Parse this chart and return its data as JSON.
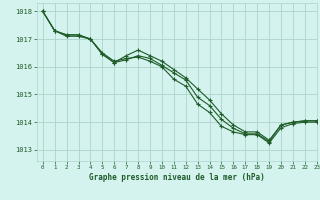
{
  "title": "Graphe pression niveau de la mer (hPa)",
  "background_color": "#d4f2ee",
  "grid_color": "#aed4cc",
  "line_color": "#1e5c28",
  "xlim": [
    -0.5,
    23
  ],
  "ylim": [
    1012.6,
    1018.3
  ],
  "yticks": [
    1013,
    1014,
    1015,
    1016,
    1017,
    1018
  ],
  "xticks": [
    0,
    1,
    2,
    3,
    4,
    5,
    6,
    7,
    8,
    9,
    10,
    11,
    12,
    13,
    14,
    15,
    16,
    17,
    18,
    19,
    20,
    21,
    22,
    23
  ],
  "series1_x": [
    0,
    1,
    2,
    3,
    4,
    5,
    6,
    7,
    8,
    9,
    10,
    11,
    12,
    13,
    14,
    15,
    16,
    17,
    18,
    19,
    20,
    21,
    22,
    23
  ],
  "series1_y": [
    1018.0,
    1017.3,
    1017.1,
    1017.1,
    1017.0,
    1016.5,
    1016.2,
    1016.3,
    1016.35,
    1016.2,
    1016.0,
    1015.55,
    1015.3,
    1014.65,
    1014.35,
    1013.85,
    1013.65,
    1013.55,
    1013.55,
    1013.25,
    1013.8,
    1013.95,
    1014.0,
    1014.0
  ],
  "series2_x": [
    0,
    1,
    2,
    3,
    4,
    5,
    6,
    7,
    8,
    9,
    10,
    11,
    12,
    13,
    14,
    15,
    16,
    17,
    18,
    19,
    20,
    21,
    22,
    23
  ],
  "series2_y": [
    1018.0,
    1017.3,
    1017.15,
    1017.15,
    1017.0,
    1016.45,
    1016.15,
    1016.4,
    1016.6,
    1016.4,
    1016.2,
    1015.9,
    1015.6,
    1015.2,
    1014.8,
    1014.3,
    1013.9,
    1013.65,
    1013.65,
    1013.35,
    1013.9,
    1014.0,
    1014.05,
    1014.05
  ],
  "series3_x": [
    0,
    1,
    2,
    3,
    4,
    5,
    6,
    7,
    8,
    9,
    10,
    11,
    12,
    13,
    14,
    15,
    16,
    17,
    18,
    19,
    20,
    21,
    22,
    23
  ],
  "series3_y": [
    1018.0,
    1017.3,
    1017.15,
    1017.15,
    1017.0,
    1016.45,
    1016.15,
    1016.25,
    1016.4,
    1016.3,
    1016.05,
    1015.78,
    1015.52,
    1014.9,
    1014.6,
    1014.1,
    1013.78,
    1013.58,
    1013.58,
    1013.3,
    1013.9,
    1014.0,
    1014.05,
    1014.05
  ]
}
